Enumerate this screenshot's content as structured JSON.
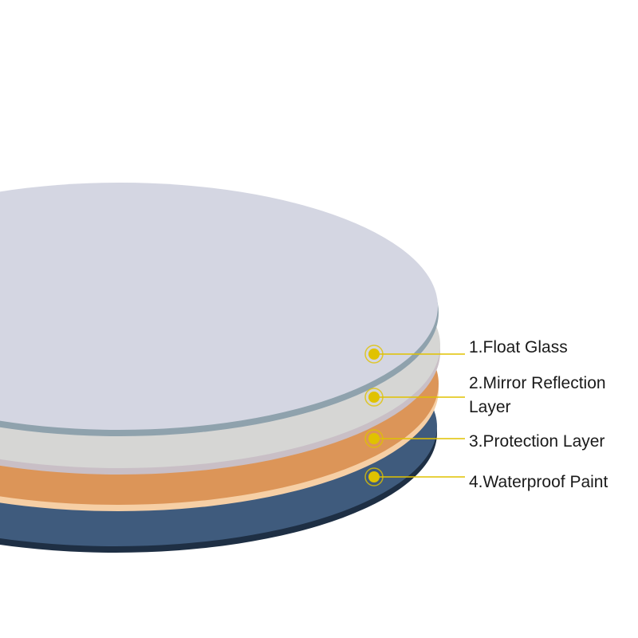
{
  "layers": [
    {
      "label": "1.Float Glass",
      "color": "#d4d6e2"
    },
    {
      "label": "2.Mirror Reflection",
      "label_line2": "Layer",
      "color": "#d6d6d4"
    },
    {
      "label": "3.Protection Layer",
      "color": "#dc9558"
    },
    {
      "label": "4.Waterproof Paint",
      "color": "#3f5b7d"
    }
  ],
  "colors": {
    "marker": "#e0c200",
    "leader_line": "#e0c200"
  }
}
